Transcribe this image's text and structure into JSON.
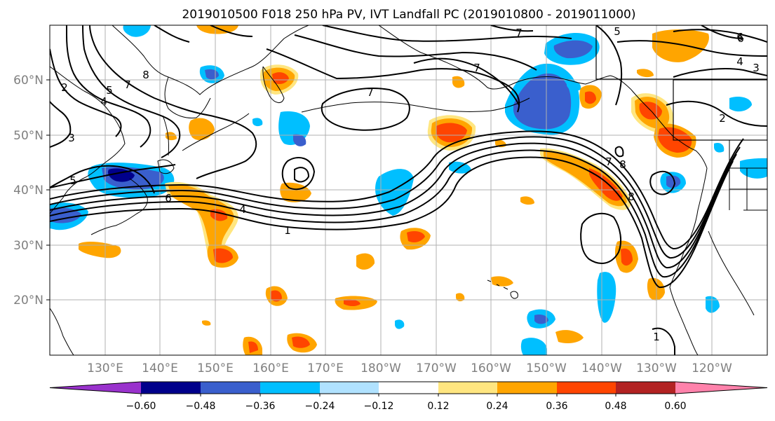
{
  "title": "2019010500 F018 250 hPa PV, IVT Landfall PC (2019010800 - 2019011000)",
  "map": {
    "lat_ticks": [
      "20°N",
      "30°N",
      "40°N",
      "50°N",
      "60°N"
    ],
    "lon_ticks": [
      "130°E",
      "140°E",
      "150°E",
      "160°E",
      "170°E",
      "180°W",
      "170°W",
      "160°W",
      "150°W",
      "140°W",
      "130°W",
      "120°W"
    ],
    "lat_range": [
      10,
      70
    ],
    "lon_range_east": [
      120,
      250
    ],
    "tick_color": "#7f7f7f",
    "grid": true,
    "contour_labels": [
      "7",
      "7",
      "7",
      "7",
      "7",
      "6",
      "6",
      "5",
      "5",
      "5",
      "4",
      "4",
      "3",
      "3",
      "2",
      "2",
      "8",
      "8",
      "8",
      "1",
      "1",
      "6",
      "4"
    ]
  },
  "colorbar": {
    "ticks": [
      "−0.60",
      "−0.48",
      "−0.36",
      "−0.24",
      "−0.12",
      "0.12",
      "0.24",
      "0.36",
      "0.48",
      "0.60"
    ],
    "colors": [
      "#9932cc",
      "#00008b",
      "#3a5fcd",
      "#00bfff",
      "#b0e2ff",
      "#ffffff",
      "#ffe680",
      "#ffa500",
      "#ff4500",
      "#b22222",
      "#ff82ab"
    ],
    "extend": "both"
  }
}
